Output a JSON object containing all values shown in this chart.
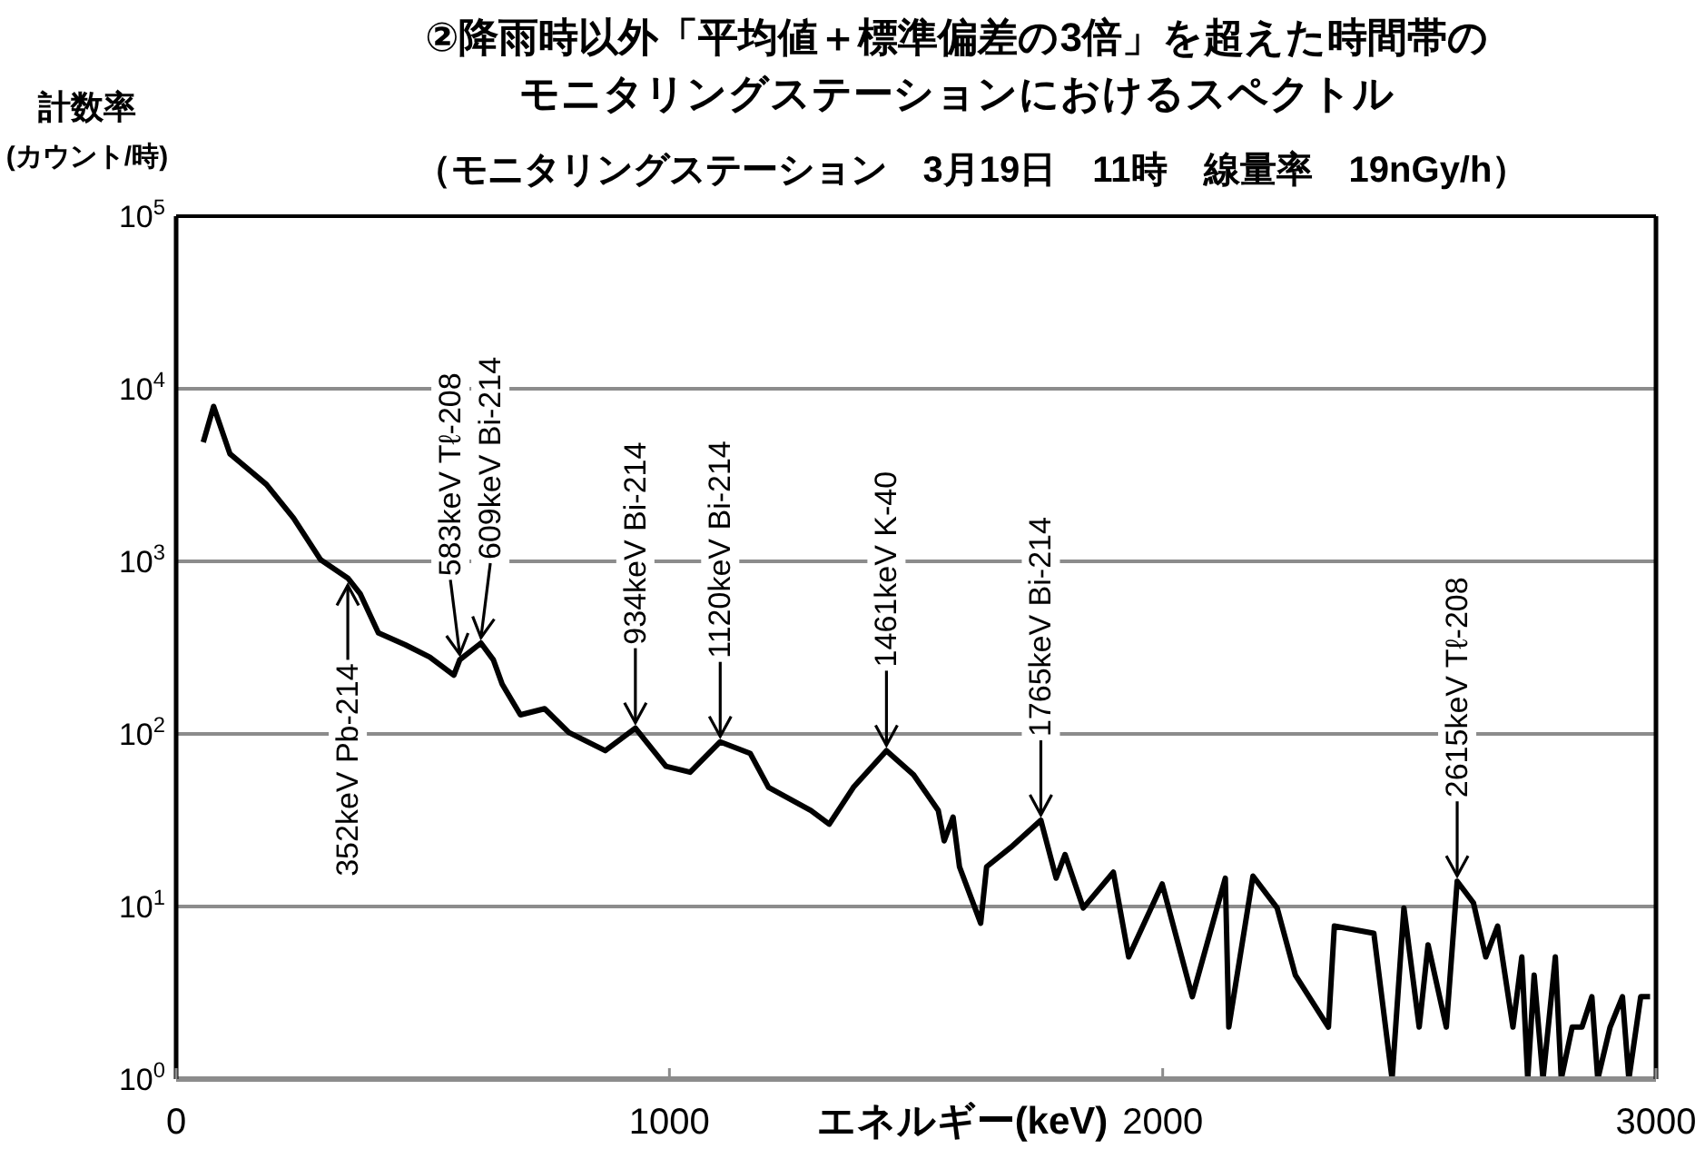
{
  "chart_data": {
    "type": "line",
    "title": "②降雨時以外「平均値＋標準偏差の3倍」を超えた時間帯のモニタリングステーションにおけるスペクトル",
    "subtitle": "（モニタリングステーション　3月19日　11時　線量率　19nGy/h）",
    "xlabel": "エネルギー(keV)",
    "ylabel": "計数率\n(カウント/時)",
    "log": "y",
    "grid": "y",
    "marker": "none",
    "line_style": "solid",
    "xlim": [
      0,
      3000
    ],
    "xticks": [
      0,
      1000,
      2000,
      3000
    ],
    "ylim": [
      1,
      100000
    ],
    "yticks": [
      {
        "value": 1,
        "label": "10$^{0}$"
      },
      {
        "value": 10,
        "label": "10$^{1}$"
      },
      {
        "value": 100,
        "label": "10$^{2}$"
      },
      {
        "value": 1000,
        "label": "10$^{3}$"
      },
      {
        "value": 10000,
        "label": "10$^{4}$"
      },
      {
        "value": 100000,
        "label": "10$^{5}$"
      }
    ],
    "x": [
      55,
      76,
      109,
      183,
      238,
      293,
      348,
      373,
      410,
      465,
      514,
      563,
      575,
      618,
      643,
      661,
      698,
      747,
      796,
      870,
      931,
      993,
      1042,
      1103,
      1164,
      1201,
      1287,
      1324,
      1373,
      1440,
      1495,
      1545,
      1557,
      1575,
      1588,
      1631,
      1643,
      1692,
      1753,
      1784,
      1802,
      1839,
      1900,
      1931,
      1999,
      2060,
      2127,
      2134,
      2183,
      2232,
      2269,
      2336,
      2348,
      2428,
      2465,
      2489,
      2520,
      2538,
      2575,
      2597,
      2630,
      2655,
      2679,
      2710,
      2728,
      2740,
      2753,
      2771,
      2796,
      2808,
      2830,
      2850,
      2870,
      2882,
      2907,
      2932,
      2945,
      2969,
      2988
    ],
    "series": [
      {
        "color": "#000000",
        "values": [
          4900,
          7900,
          4200,
          2790,
          1780,
          1020,
          800,
          650,
          385,
          328,
          279,
          219,
          269,
          336,
          269,
          194,
          129,
          140,
          102,
          80,
          108,
          65,
          60,
          90,
          77,
          49,
          36,
          30,
          49,
          80,
          58,
          36,
          24,
          33,
          17,
          8,
          17,
          22,
          31.6,
          14.6,
          20,
          9.8,
          15.8,
          5.1,
          13.5,
          3.0,
          14.6,
          2.0,
          15,
          9.8,
          4.0,
          2.0,
          7.7,
          7,
          1.0,
          9.8,
          2.0,
          6.0,
          2.0,
          14,
          10.5,
          5.1,
          7.7,
          2.0,
          5.1,
          1.0,
          4.0,
          1.0,
          5.1,
          1.0,
          2.0,
          2.0,
          3.0,
          1.0,
          2.0,
          3.0,
          1.0,
          3.0,
          3.0
        ]
      }
    ],
    "annotations": [
      {
        "text": "352keV Pb-214",
        "x": 348,
        "y": 800
      },
      {
        "text": "583keV Tℓ-208",
        "x": 575,
        "y": 269
      },
      {
        "text": "609keV Bi-214",
        "x": 618,
        "y": 336
      },
      {
        "text": "934keV Bi-214",
        "x": 931,
        "y": 108
      },
      {
        "text": "1120keV Bi-214",
        "x": 1103,
        "y": 90
      },
      {
        "text": "1461keV K-40",
        "x": 1440,
        "y": 80
      },
      {
        "text": "1765keV Bi-214",
        "x": 1753,
        "y": 31.6
      },
      {
        "text": "2615keV Tℓ-208",
        "x": 2597,
        "y": 14
      }
    ]
  }
}
